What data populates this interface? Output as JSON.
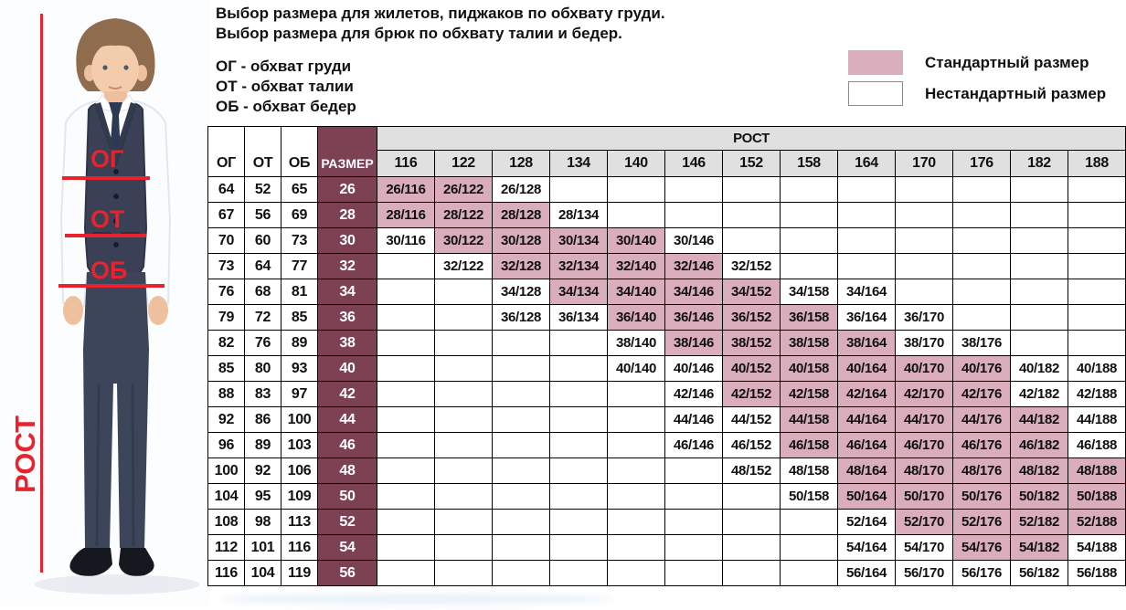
{
  "titles": {
    "line1": "Выбор размера для жилетов, пиджаков по обхвату груди.",
    "line2": "Выбор размера для брюк по обхвату талии и бедер."
  },
  "abbreviations": {
    "chest": "ОГ - обхват груди",
    "waist": "ОТ - обхват талии",
    "hips": "ОБ - обхват бедер"
  },
  "legend": {
    "standard_label": "Стандартный размер",
    "nonstandard_label": "Нестандартный размер",
    "standard_color": "#d9adbc",
    "nonstandard_color": "#ffffff"
  },
  "photo": {
    "height_label": "РОСТ",
    "chest_label": "ОГ",
    "waist_label": "ОТ",
    "hip_label": "ОБ",
    "annotation_color": "#e8232e"
  },
  "table": {
    "col_headers": {
      "chest": "ОГ",
      "waist": "ОТ",
      "hips": "ОБ",
      "size": "РАЗМЕР",
      "height": "РОСТ"
    },
    "heights": [
      "116",
      "122",
      "128",
      "134",
      "140",
      "146",
      "152",
      "158",
      "164",
      "170",
      "176",
      "182",
      "188"
    ],
    "size_col_color": "#7d4154",
    "header_bg": "#e0e0e0",
    "standard_bg": "#d9adbc",
    "rows": [
      {
        "og": "64",
        "ot": "52",
        "ob": "65",
        "size": "26",
        "cells": [
          "S|26/116",
          "S|26/122",
          "N|26/128",
          "",
          "",
          "",
          "",
          "",
          "",
          "",
          "",
          "",
          ""
        ]
      },
      {
        "og": "67",
        "ot": "56",
        "ob": "69",
        "size": "28",
        "cells": [
          "S|28/116",
          "S|28/122",
          "S|28/128",
          "N|28/134",
          "",
          "",
          "",
          "",
          "",
          "",
          "",
          "",
          ""
        ]
      },
      {
        "og": "70",
        "ot": "60",
        "ob": "73",
        "size": "30",
        "cells": [
          "N|30/116",
          "S|30/122",
          "S|30/128",
          "S|30/134",
          "S|30/140",
          "N|30/146",
          "",
          "",
          "",
          "",
          "",
          "",
          ""
        ]
      },
      {
        "og": "73",
        "ot": "64",
        "ob": "77",
        "size": "32",
        "cells": [
          "",
          "N|32/122",
          "S|32/128",
          "S|32/134",
          "S|32/140",
          "S|32/146",
          "N|32/152",
          "",
          "",
          "",
          "",
          "",
          ""
        ]
      },
      {
        "og": "76",
        "ot": "68",
        "ob": "81",
        "size": "34",
        "cells": [
          "",
          "",
          "N|34/128",
          "S|34/134",
          "S|34/140",
          "S|34/146",
          "S|34/152",
          "N|34/158",
          "N|34/164",
          "",
          "",
          "",
          ""
        ]
      },
      {
        "og": "79",
        "ot": "72",
        "ob": "85",
        "size": "36",
        "cells": [
          "",
          "",
          "N|36/128",
          "N|36/134",
          "S|36/140",
          "S|36/146",
          "S|36/152",
          "S|36/158",
          "N|36/164",
          "N|36/170",
          "",
          "",
          ""
        ]
      },
      {
        "og": "82",
        "ot": "76",
        "ob": "89",
        "size": "38",
        "cells": [
          "",
          "",
          "",
          "",
          "N|38/140",
          "S|38/146",
          "S|38/152",
          "S|38/158",
          "S|38/164",
          "N|38/170",
          "N|38/176",
          "",
          ""
        ]
      },
      {
        "og": "85",
        "ot": "80",
        "ob": "93",
        "size": "40",
        "cells": [
          "",
          "",
          "",
          "",
          "N|40/140",
          "N|40/146",
          "S|40/152",
          "S|40/158",
          "S|40/164",
          "S|40/170",
          "S|40/176",
          "N|40/182",
          "N|40/188"
        ]
      },
      {
        "og": "88",
        "ot": "83",
        "ob": "97",
        "size": "42",
        "cells": [
          "",
          "",
          "",
          "",
          "",
          "N|42/146",
          "S|42/152",
          "S|42/158",
          "S|42/164",
          "S|42/170",
          "S|42/176",
          "N|42/182",
          "N|42/188"
        ]
      },
      {
        "og": "92",
        "ot": "86",
        "ob": "100",
        "size": "44",
        "cells": [
          "",
          "",
          "",
          "",
          "",
          "N|44/146",
          "N|44/152",
          "S|44/158",
          "S|44/164",
          "S|44/170",
          "S|44/176",
          "S|44/182",
          "N|44/188"
        ]
      },
      {
        "og": "96",
        "ot": "89",
        "ob": "103",
        "size": "46",
        "cells": [
          "",
          "",
          "",
          "",
          "",
          "N|46/146",
          "N|46/152",
          "S|46/158",
          "S|46/164",
          "S|46/170",
          "S|46/176",
          "S|46/182",
          "N|46/188"
        ]
      },
      {
        "og": "100",
        "ot": "92",
        "ob": "106",
        "size": "48",
        "cells": [
          "",
          "",
          "",
          "",
          "",
          "",
          "N|48/152",
          "N|48/158",
          "S|48/164",
          "S|48/170",
          "S|48/176",
          "S|48/182",
          "S|48/188"
        ]
      },
      {
        "og": "104",
        "ot": "95",
        "ob": "109",
        "size": "50",
        "cells": [
          "",
          "",
          "",
          "",
          "",
          "",
          "",
          "N|50/158",
          "S|50/164",
          "S|50/170",
          "S|50/176",
          "S|50/182",
          "S|50/188"
        ]
      },
      {
        "og": "108",
        "ot": "98",
        "ob": "113",
        "size": "52",
        "cells": [
          "",
          "",
          "",
          "",
          "",
          "",
          "",
          "",
          "N|52/164",
          "S|52/170",
          "S|52/176",
          "S|52/182",
          "S|52/188"
        ]
      },
      {
        "og": "112",
        "ot": "101",
        "ob": "116",
        "size": "54",
        "cells": [
          "",
          "",
          "",
          "",
          "",
          "",
          "",
          "",
          "N|54/164",
          "N|54/170",
          "S|54/176",
          "S|54/182",
          "N|54/188"
        ]
      },
      {
        "og": "116",
        "ot": "104",
        "ob": "119",
        "size": "56",
        "cells": [
          "",
          "",
          "",
          "",
          "",
          "",
          "",
          "",
          "N|56/164",
          "N|56/170",
          "N|56/176",
          "N|56/182",
          "N|56/188"
        ]
      }
    ]
  }
}
